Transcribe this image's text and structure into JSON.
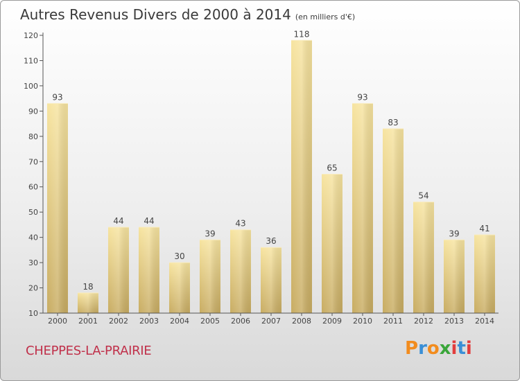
{
  "header": {
    "title": "Autres Revenus Divers de 2000 à 2014",
    "subtitle": "(en milliers d'€)"
  },
  "footer": {
    "location": "CHEPPES-LA-PRAIRIE",
    "logo_text": "Proxiti"
  },
  "colors": {
    "bar_light": "#f7e4a0",
    "bar_dark": "#c8ac62",
    "location": "#c0304a",
    "logo": [
      "#f28c1e",
      "#3a8fd6",
      "#f28c1e",
      "#3aa63a",
      "#e23d3d",
      "#3a8fd6",
      "#e23d3d"
    ]
  },
  "chart_data": {
    "type": "bar",
    "title": "Autres Revenus Divers de 2000 à 2014",
    "subtitle": "(en milliers d'€)",
    "categories": [
      "2000",
      "2001",
      "2002",
      "2003",
      "2004",
      "2005",
      "2006",
      "2007",
      "2008",
      "2009",
      "2010",
      "2011",
      "2012",
      "2013",
      "2014"
    ],
    "values": [
      93,
      18,
      44,
      44,
      30,
      39,
      43,
      36,
      118,
      65,
      93,
      83,
      54,
      39,
      41
    ],
    "ylim": [
      10,
      120
    ],
    "yticks": [
      10,
      20,
      30,
      40,
      50,
      60,
      70,
      80,
      90,
      100,
      110,
      120
    ],
    "grid": false,
    "data_labels": true
  }
}
